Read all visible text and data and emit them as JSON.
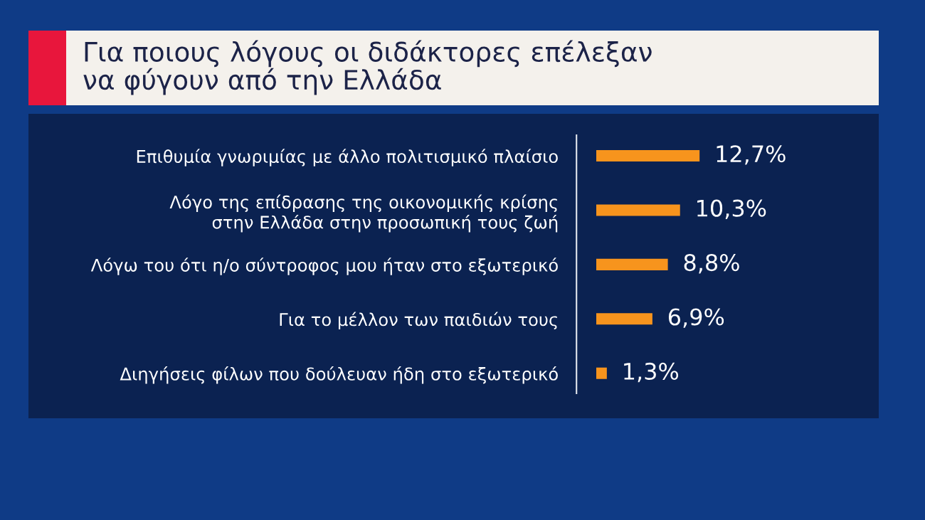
{
  "chart_data": {
    "type": "bar",
    "orientation": "horizontal",
    "title": "Για ποιους λόγους οι διδάκτορες επέλεξαν\nνα φύγουν από την Ελλάδα",
    "categories": [
      "Επιθυμία γνωριμίας με άλλο πολιτισμικό πλαίσιο",
      "Λόγο της επίδρασης της οικονομικής κρίσης\nστην Ελλάδα στην προσωπική τους ζωή",
      "Λόγω του ότι η/ο σύντροφος μου ήταν στο εξωτερικό",
      "Για το μέλλον των παιδιών τους",
      "Διηγήσεις φίλων που δούλευαν ήδη στο εξωτερικό"
    ],
    "values": [
      12.7,
      10.3,
      8.8,
      6.9,
      1.3
    ],
    "color": "#f7941d",
    "value_labels": [
      "12,7%",
      "10,3%",
      "8,8%",
      "6,9%",
      "1,3%"
    ],
    "tick_labels": "y"
  }
}
